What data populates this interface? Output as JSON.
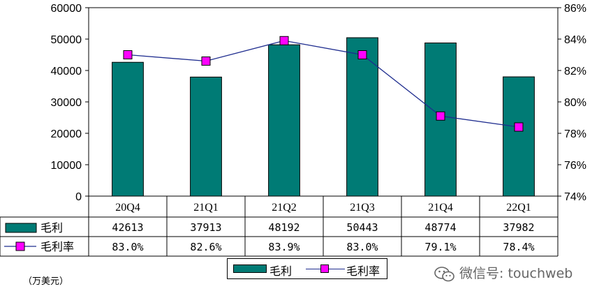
{
  "chart_data": {
    "type": "bar",
    "categories": [
      "20Q4",
      "21Q1",
      "21Q2",
      "21Q3",
      "21Q4",
      "22Q1"
    ],
    "series": [
      {
        "name": "毛利",
        "type": "bar",
        "values": [
          42613,
          37913,
          48192,
          50443,
          48774,
          37982
        ],
        "color": "#007b75"
      },
      {
        "name": "毛利率",
        "type": "line",
        "axis": "right",
        "values": [
          83.0,
          82.6,
          83.9,
          83.0,
          79.1,
          78.4
        ],
        "color": "#1f2d8f",
        "marker_color": "#ff00ff"
      }
    ],
    "y_left": {
      "ylim": [
        0,
        60000
      ],
      "ticks": [
        "0",
        "10000",
        "20000",
        "30000",
        "40000",
        "50000",
        "60000"
      ]
    },
    "y_right": {
      "ylim": [
        74,
        86
      ],
      "ticks": [
        "74%",
        "76%",
        "78%",
        "80%",
        "82%",
        "84%",
        "86%"
      ]
    },
    "table": {
      "row_labels": [
        "毛利",
        "毛利率"
      ],
      "rows": [
        [
          "42613",
          "37913",
          "48192",
          "50443",
          "48774",
          "37982"
        ],
        [
          "83.0%",
          "82.6%",
          "83.9%",
          "83.0%",
          "79.1%",
          "78.4%"
        ]
      ]
    },
    "legend": {
      "placement": "bottom",
      "items": [
        "毛利",
        "毛利率"
      ]
    },
    "unit_label": "（万美元）",
    "grid": false
  },
  "watermark": {
    "text": "微信号: touchweb",
    "icon": "wechat-icon"
  }
}
